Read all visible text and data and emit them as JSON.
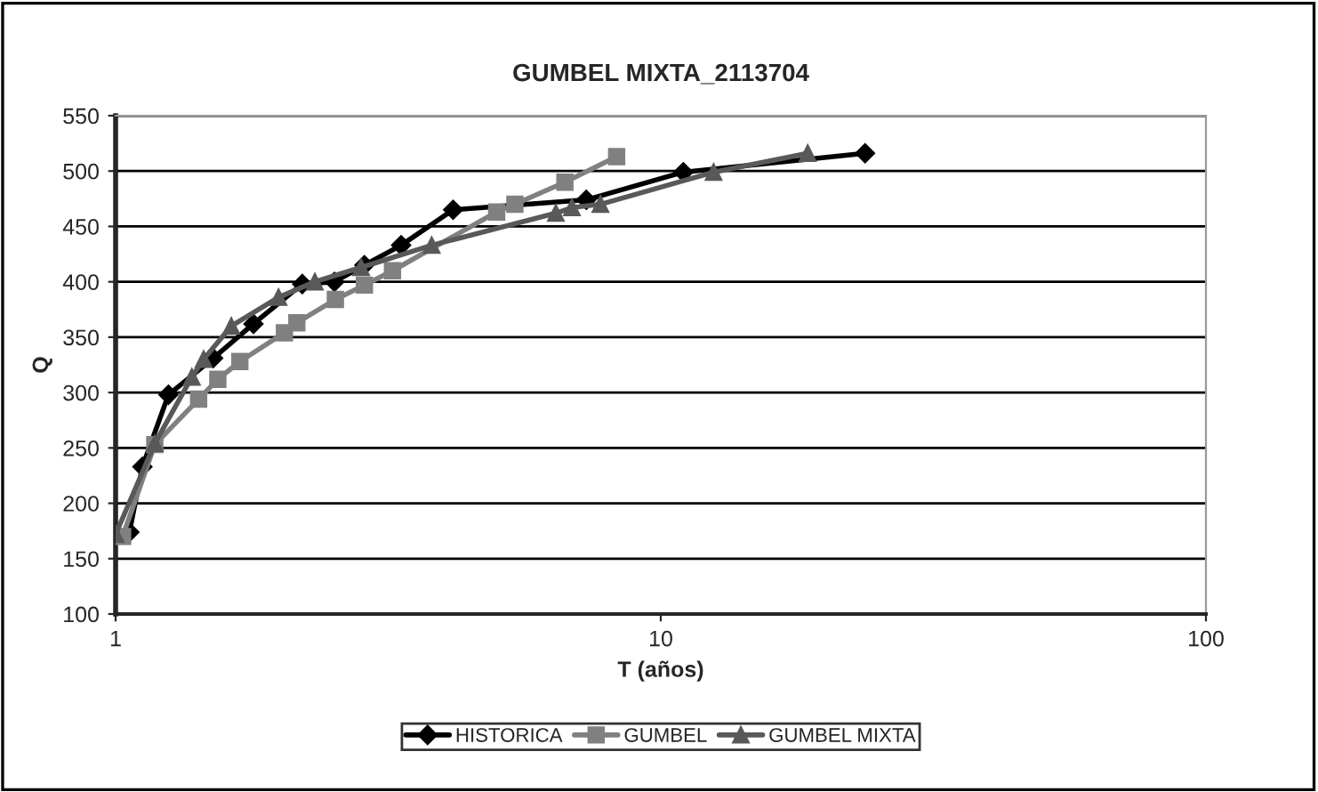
{
  "chart_data": {
    "type": "line",
    "title": "GUMBEL MIXTA_2113704",
    "xlabel": "T (años)",
    "ylabel": "Q",
    "log": "x",
    "xlim": [
      1,
      100
    ],
    "xticks": [
      1,
      10,
      100
    ],
    "ylim": [
      100,
      550
    ],
    "yticks": [
      100,
      150,
      200,
      250,
      300,
      350,
      400,
      450,
      500,
      550
    ],
    "grid": "y",
    "legend": "bottom",
    "series": [
      {
        "name": "HISTORICA",
        "color": "#000000",
        "marker": "diamond",
        "x": [
          1.06,
          1.12,
          1.25,
          1.51,
          1.79,
          2.2,
          2.52,
          2.86,
          3.34,
          4.16,
          7.3,
          11.0,
          23.7
        ],
        "values": [
          174,
          233,
          298,
          331,
          362,
          398,
          400,
          415,
          433,
          465,
          474,
          499,
          516
        ]
      },
      {
        "name": "GUMBEL",
        "color": "#808080",
        "marker": "square",
        "x": [
          1.03,
          1.18,
          1.42,
          1.54,
          1.69,
          2.04,
          2.15,
          2.53,
          2.86,
          3.22,
          5.0,
          5.4,
          6.67,
          8.3
        ],
        "values": [
          170,
          253,
          294,
          312,
          328,
          354,
          363,
          384,
          397,
          410,
          463,
          470,
          490,
          513
        ]
      },
      {
        "name": "GUMBEL MIXTA",
        "color": "#595959",
        "marker": "triangle",
        "x": [
          1.0,
          1.18,
          1.38,
          1.45,
          1.63,
          1.99,
          2.32,
          2.82,
          3.8,
          6.42,
          6.87,
          7.75,
          12.5,
          18.6
        ],
        "values": [
          172,
          254,
          314,
          330,
          360,
          386,
          400,
          413,
          433,
          462,
          467,
          470,
          499,
          516
        ]
      }
    ]
  }
}
